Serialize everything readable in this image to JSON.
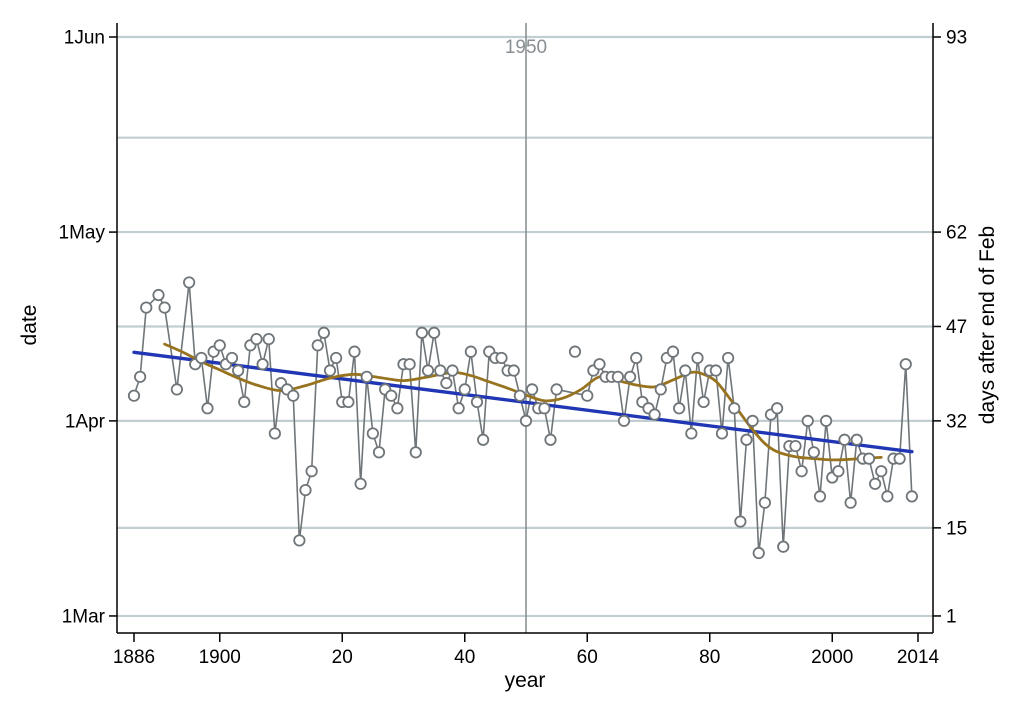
{
  "figure": {
    "x_title": "year",
    "y_left_title": "date",
    "y_right_title": "days after end of Feb"
  },
  "colors": {
    "background": "#ffffff",
    "axis": "#000000",
    "gridline": "#c2cdd2",
    "reference_line": "#8b9195",
    "reference_label": "#8a8f93",
    "observed_gray": "#6f7578",
    "linear_fit_blue": "#2036b4",
    "lowess_brown": "#97731f",
    "marker_fill": "#ffffff"
  },
  "chart_data": {
    "type": "scatter",
    "title": "",
    "xlabel": "year",
    "ylabel_left": "date",
    "ylabel_right": "days after end of Feb",
    "x_range_years": [
      1884.3,
      2016.4
    ],
    "y_range_days": [
      1,
      93
    ],
    "grid": true,
    "legend": false,
    "x_ticks": [
      {
        "year": 1886,
        "label": "1886"
      },
      {
        "year": 1900,
        "label": "1900"
      },
      {
        "year": 1920,
        "label": "20"
      },
      {
        "year": 1940,
        "label": "40"
      },
      {
        "year": 1960,
        "label": "60"
      },
      {
        "year": 1980,
        "label": "80"
      },
      {
        "year": 2000,
        "label": "2000"
      },
      {
        "year": 2014,
        "label": "2014"
      }
    ],
    "y_left_ticks": [
      {
        "day": 93,
        "label": "1Jun"
      },
      {
        "day": 62,
        "label": "1May"
      },
      {
        "day": 32,
        "label": "1Apr"
      },
      {
        "day": 1,
        "label": "1Mar"
      }
    ],
    "y_right_ticks": [
      {
        "day": 93,
        "label": "93"
      },
      {
        "day": 62,
        "label": "62"
      },
      {
        "day": 47,
        "label": "47"
      },
      {
        "day": 32,
        "label": "32"
      },
      {
        "day": 15,
        "label": "15"
      },
      {
        "day": 1,
        "label": "1"
      }
    ],
    "gridline_days": [
      93,
      77,
      62,
      47,
      32,
      15,
      1
    ],
    "ref_line": {
      "year": 1950,
      "label": "1950"
    },
    "series": [
      {
        "name": "observed",
        "type": "connected-scatter",
        "color_key": "observed_gray",
        "points": [
          [
            1886,
            36
          ],
          [
            1887,
            39
          ],
          [
            1888,
            50
          ],
          [
            1890,
            52
          ],
          [
            1891,
            50
          ],
          [
            1893,
            37
          ],
          [
            1895,
            54
          ],
          [
            1896,
            41
          ],
          [
            1897,
            42
          ],
          [
            1898,
            34
          ],
          [
            1899,
            43
          ],
          [
            1900,
            44
          ],
          [
            1901,
            41
          ],
          [
            1902,
            42
          ],
          [
            1903,
            40
          ],
          [
            1904,
            35
          ],
          [
            1905,
            44
          ],
          [
            1906,
            45
          ],
          [
            1907,
            41
          ],
          [
            1908,
            45
          ],
          [
            1909,
            30
          ],
          [
            1910,
            38
          ],
          [
            1911,
            37
          ],
          [
            1912,
            36
          ],
          [
            1913,
            13
          ],
          [
            1914,
            21
          ],
          [
            1915,
            24
          ],
          [
            1916,
            44
          ],
          [
            1917,
            46
          ],
          [
            1918,
            40
          ],
          [
            1919,
            42
          ],
          [
            1920,
            35
          ],
          [
            1921,
            35
          ],
          [
            1922,
            43
          ],
          [
            1923,
            22
          ],
          [
            1924,
            39
          ],
          [
            1925,
            30
          ],
          [
            1926,
            27
          ],
          [
            1927,
            37
          ],
          [
            1928,
            36
          ],
          [
            1929,
            34
          ],
          [
            1930,
            41
          ],
          [
            1931,
            41
          ],
          [
            1932,
            27
          ],
          [
            1933,
            46
          ],
          [
            1934,
            40
          ],
          [
            1935,
            46
          ],
          [
            1936,
            40
          ],
          [
            1937,
            38
          ],
          [
            1938,
            40
          ],
          [
            1939,
            34
          ],
          [
            1940,
            37
          ],
          [
            1941,
            43
          ],
          [
            1942,
            35
          ],
          [
            1943,
            29
          ],
          [
            1944,
            43
          ],
          [
            1945,
            42
          ],
          [
            1946,
            42
          ],
          [
            1947,
            40
          ],
          [
            1948,
            40
          ],
          [
            1949,
            36
          ],
          [
            1950,
            32
          ],
          [
            1951,
            37
          ],
          [
            1952,
            34
          ],
          [
            1953,
            34
          ],
          [
            1954,
            29
          ],
          [
            1955,
            37
          ],
          [
            1960,
            36
          ],
          [
            1961,
            40
          ],
          [
            1962,
            41
          ],
          [
            1963,
            39
          ],
          [
            1964,
            39
          ],
          [
            1965,
            39
          ],
          [
            1966,
            32
          ],
          [
            1967,
            39
          ],
          [
            1968,
            42
          ],
          [
            1969,
            35
          ],
          [
            1970,
            34
          ],
          [
            1971,
            33
          ],
          [
            1972,
            37
          ],
          [
            1973,
            42
          ],
          [
            1974,
            43
          ],
          [
            1975,
            34
          ],
          [
            1976,
            40
          ],
          [
            1977,
            30
          ],
          [
            1978,
            42
          ],
          [
            1979,
            35
          ],
          [
            1980,
            40
          ],
          [
            1981,
            40
          ],
          [
            1982,
            30
          ],
          [
            1983,
            42
          ],
          [
            1984,
            34
          ],
          [
            1985,
            16
          ],
          [
            1986,
            29
          ],
          [
            1987,
            32
          ],
          [
            1988,
            11
          ],
          [
            1989,
            19
          ],
          [
            1990,
            33
          ],
          [
            1991,
            34
          ],
          [
            1992,
            12
          ],
          [
            1993,
            28
          ],
          [
            1994,
            28
          ],
          [
            1995,
            24
          ],
          [
            1996,
            32
          ],
          [
            1997,
            27
          ],
          [
            1998,
            20
          ],
          [
            1999,
            32
          ],
          [
            2000,
            23
          ],
          [
            2001,
            24
          ],
          [
            2002,
            29
          ],
          [
            2003,
            19
          ],
          [
            2004,
            29
          ],
          [
            2005,
            26
          ],
          [
            2006,
            26
          ],
          [
            2007,
            22
          ],
          [
            2008,
            24
          ],
          [
            2009,
            20
          ],
          [
            2010,
            26
          ],
          [
            2011,
            26
          ],
          [
            2012,
            41
          ],
          [
            2013,
            20
          ]
        ]
      },
      {
        "name": "isolated-observation",
        "type": "scatter",
        "color_key": "observed_gray",
        "points": [
          [
            1958,
            43
          ]
        ]
      },
      {
        "name": "linear-fit",
        "type": "line",
        "color_key": "linear_fit_blue",
        "points": [
          [
            1886,
            42.9
          ],
          [
            2013,
            27.1
          ]
        ]
      },
      {
        "name": "lowess-smooth",
        "type": "smooth-line",
        "color_key": "lowess_brown",
        "points": [
          [
            1891,
            44.2
          ],
          [
            1894,
            42.9
          ],
          [
            1897,
            41.4
          ],
          [
            1900,
            40.1
          ],
          [
            1903,
            38.8
          ],
          [
            1906,
            37.7
          ],
          [
            1910,
            36.8
          ],
          [
            1914,
            37.6
          ],
          [
            1918,
            38.8
          ],
          [
            1922,
            39.4
          ],
          [
            1926,
            38.9
          ],
          [
            1930,
            38.4
          ],
          [
            1934,
            39.0
          ],
          [
            1938,
            39.7
          ],
          [
            1941,
            39.2
          ],
          [
            1944,
            38.2
          ],
          [
            1947,
            37.2
          ],
          [
            1950,
            36.1
          ],
          [
            1953,
            35.2
          ],
          [
            1956,
            35.6
          ],
          [
            1959,
            37.0
          ],
          [
            1962,
            39.0
          ],
          [
            1965,
            38.4
          ],
          [
            1968,
            37.7
          ],
          [
            1971,
            37.4
          ],
          [
            1974,
            38.5
          ],
          [
            1977,
            39.7
          ],
          [
            1979,
            39.4
          ],
          [
            1981,
            38.3
          ],
          [
            1983,
            35.9
          ],
          [
            1985,
            33.2
          ],
          [
            1987,
            30.6
          ],
          [
            1989,
            28.4
          ],
          [
            1991,
            27.1
          ],
          [
            1994,
            26.3
          ],
          [
            1997,
            26.0
          ],
          [
            2000,
            25.8
          ],
          [
            2003,
            25.9
          ],
          [
            2006,
            26.1
          ],
          [
            2008,
            26.2
          ]
        ]
      }
    ]
  }
}
